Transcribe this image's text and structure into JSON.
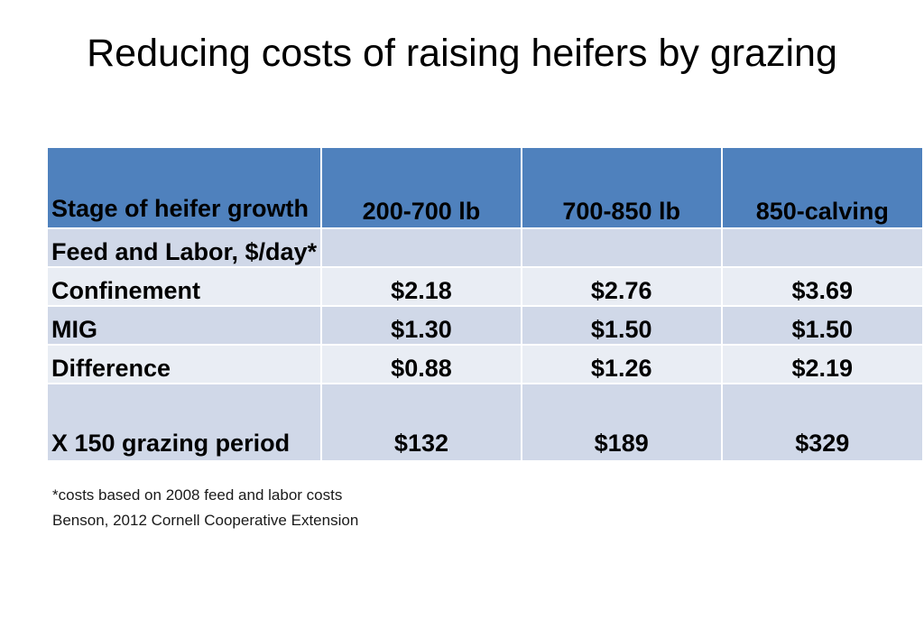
{
  "title": "Reducing costs of raising heifers by grazing",
  "table": {
    "headers": [
      "Stage of heifer growth",
      "200-700 lb",
      "700-850 lb",
      "850-calving"
    ],
    "rows": [
      [
        "Feed and Labor, $/day*",
        "",
        "",
        ""
      ],
      [
        "Confinement",
        "$2.18",
        "$2.76",
        "$3.69"
      ],
      [
        "MIG",
        "$1.30",
        "$1.50",
        "$1.50"
      ],
      [
        "Difference",
        "$0.88",
        "$1.26",
        "$2.19"
      ],
      [
        "X 150 grazing period",
        "$132",
        "$189",
        "$329"
      ]
    ]
  },
  "footnotes": [
    "*costs based on 2008 feed and labor costs",
    "Benson, 2012  Cornell Cooperative Extension"
  ],
  "colors": {
    "header": "#4f81bd",
    "row_dark": "#d0d8e8",
    "row_light": "#e9edf4"
  }
}
